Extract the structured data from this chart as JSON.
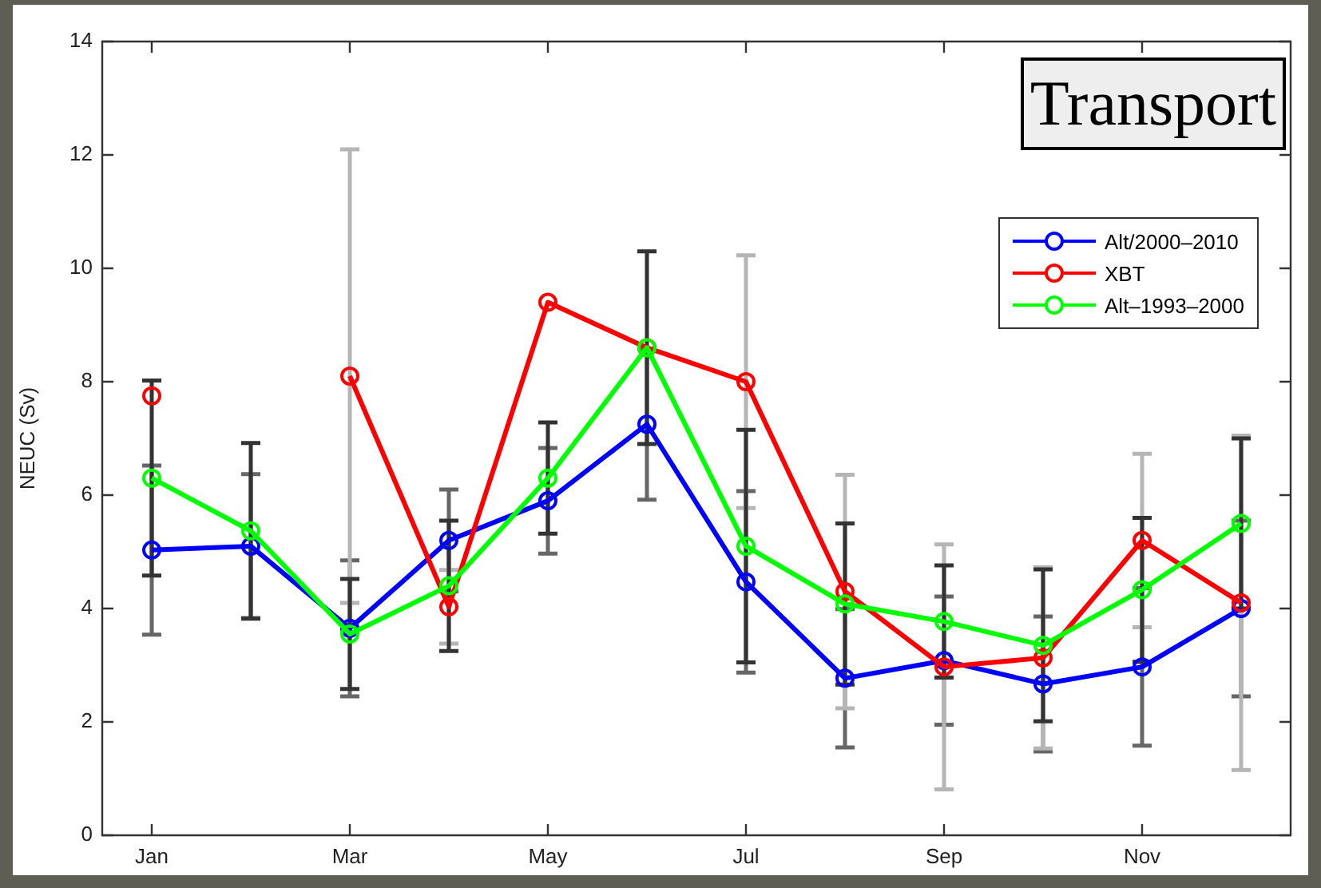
{
  "chart_data": {
    "type": "line",
    "title": "Transport",
    "ylabel": "NEUC (Sv)",
    "categories": [
      "Jan",
      null,
      "Mar",
      null,
      "May",
      null,
      "Jul",
      null,
      "Sep",
      null,
      "Nov",
      null
    ],
    "ylim": [
      0,
      14
    ],
    "yticks": [
      0,
      2,
      4,
      6,
      8,
      10,
      12,
      14
    ],
    "legend": "top right",
    "marker": "circle",
    "line_style": "solid",
    "series": [
      {
        "name": "Alt/2000–2010",
        "color": "#0000ff",
        "values": [
          5.03,
          5.1,
          3.65,
          5.2,
          5.9,
          7.25,
          4.47,
          2.77,
          3.08,
          2.67,
          2.97,
          4.0
        ],
        "errors": [
          1.49,
          1.27,
          1.2,
          0.9,
          0.93,
          1.33,
          1.6,
          1.22,
          1.13,
          1.19,
          1.39,
          1.55
        ]
      },
      {
        "name": "XBT",
        "color": "#ff0000",
        "values": [
          7.75,
          null,
          8.1,
          4.03,
          9.4,
          8.6,
          8.0,
          4.3,
          2.97,
          3.13,
          5.2,
          4.1
        ],
        "errors": [
          null,
          null,
          4.0,
          0.65,
          null,
          null,
          2.23,
          2.06,
          2.16,
          1.6,
          1.53,
          2.95
        ]
      },
      {
        "name": "Alt–1993–2000",
        "color": "#00ff00",
        "values": [
          6.3,
          5.37,
          3.55,
          4.4,
          6.3,
          8.6,
          5.1,
          4.08,
          3.77,
          3.35,
          4.33,
          5.5
        ],
        "errors": [
          1.72,
          1.55,
          0.97,
          1.15,
          0.98,
          1.7,
          2.05,
          1.42,
          0.99,
          1.34,
          1.27,
          1.5
        ]
      }
    ]
  }
}
